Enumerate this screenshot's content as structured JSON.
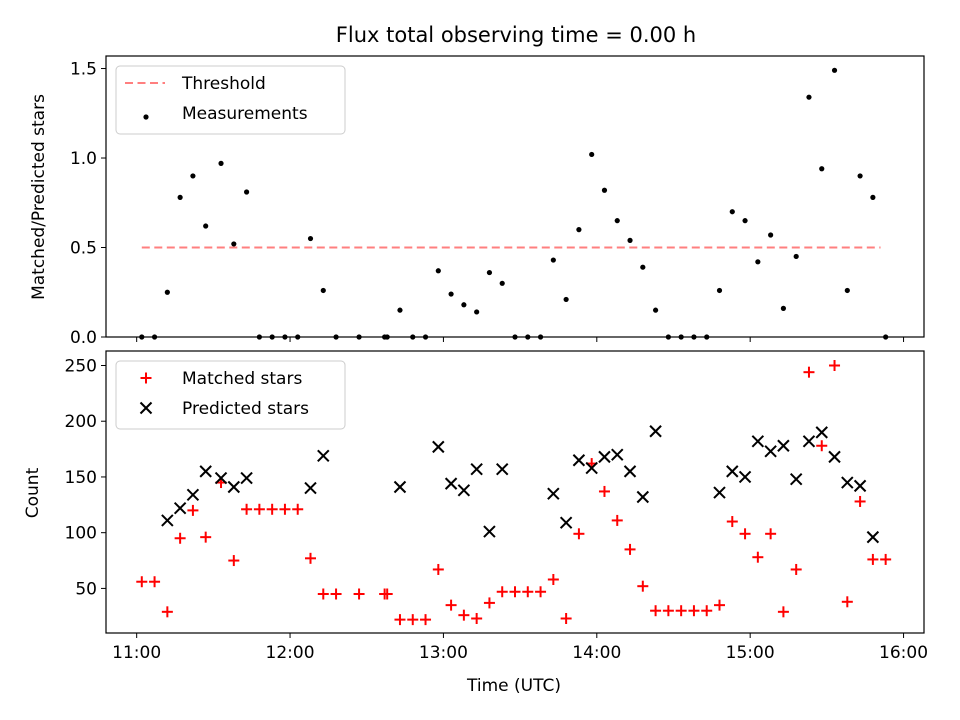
{
  "chart_data": [
    {
      "type": "scatter",
      "title": "Flux total observing time = 0.00 h",
      "xlabel": "",
      "ylabel": "Matched/Predicted stars",
      "xlim": [
        "10:48",
        "16:08"
      ],
      "ylim": [
        0,
        1.57
      ],
      "yticks": [
        0.0,
        0.5,
        1.0,
        1.5
      ],
      "ytick_labels": [
        "0.0",
        "0.5",
        "1.0",
        "1.5"
      ],
      "legend_position": "top-left",
      "threshold": {
        "name": "Threshold",
        "value": 0.5,
        "x": [
          "11:02",
          "15:51"
        ],
        "color": "#ff7f7f",
        "style": "dashed"
      },
      "series": [
        {
          "name": "Measurements",
          "marker": "dot",
          "color": "#000000",
          "points": [
            [
              "11:02",
              0.0
            ],
            [
              "11:07",
              0.0
            ],
            [
              "11:12",
              0.25
            ],
            [
              "11:17",
              0.78
            ],
            [
              "11:22",
              0.9
            ],
            [
              "11:27",
              0.62
            ],
            [
              "11:33",
              0.97
            ],
            [
              "11:38",
              0.52
            ],
            [
              "11:43",
              0.81
            ],
            [
              "11:48",
              0.0
            ],
            [
              "11:53",
              0.0
            ],
            [
              "11:58",
              0.0
            ],
            [
              "12:03",
              0.0
            ],
            [
              "12:08",
              0.55
            ],
            [
              "12:13",
              0.26
            ],
            [
              "12:18",
              0.0
            ],
            [
              "12:27",
              0.0
            ],
            [
              "12:37",
              0.0
            ],
            [
              "12:38",
              0.0
            ],
            [
              "12:43",
              0.15
            ],
            [
              "12:48",
              0.0
            ],
            [
              "12:53",
              0.0
            ],
            [
              "12:58",
              0.37
            ],
            [
              "13:03",
              0.24
            ],
            [
              "13:08",
              0.18
            ],
            [
              "13:13",
              0.14
            ],
            [
              "13:18",
              0.36
            ],
            [
              "13:23",
              0.3
            ],
            [
              "13:28",
              0.0
            ],
            [
              "13:33",
              0.0
            ],
            [
              "13:38",
              0.0
            ],
            [
              "13:43",
              0.43
            ],
            [
              "13:48",
              0.21
            ],
            [
              "13:53",
              0.6
            ],
            [
              "13:58",
              1.02
            ],
            [
              "14:03",
              0.82
            ],
            [
              "14:08",
              0.65
            ],
            [
              "14:13",
              0.54
            ],
            [
              "14:18",
              0.39
            ],
            [
              "14:23",
              0.15
            ],
            [
              "14:28",
              0.0
            ],
            [
              "14:33",
              0.0
            ],
            [
              "14:38",
              0.0
            ],
            [
              "14:43",
              0.0
            ],
            [
              "14:48",
              0.26
            ],
            [
              "14:53",
              0.7
            ],
            [
              "14:58",
              0.65
            ],
            [
              "15:03",
              0.42
            ],
            [
              "15:08",
              0.57
            ],
            [
              "15:13",
              0.16
            ],
            [
              "15:18",
              0.45
            ],
            [
              "15:23",
              1.34
            ],
            [
              "15:28",
              0.94
            ],
            [
              "15:33",
              1.49
            ],
            [
              "15:38",
              0.26
            ],
            [
              "15:43",
              0.9
            ],
            [
              "15:48",
              0.78
            ],
            [
              "15:53",
              0.0
            ]
          ]
        }
      ]
    },
    {
      "type": "scatter",
      "title": "",
      "xlabel": "Time (UTC)",
      "ylabel": "Count",
      "xlim": [
        "10:48",
        "16:08"
      ],
      "ylim": [
        10,
        263
      ],
      "yticks": [
        50,
        100,
        150,
        200,
        250
      ],
      "ytick_labels": [
        "50",
        "100",
        "150",
        "200",
        "250"
      ],
      "xticks": [
        "11:00",
        "12:00",
        "13:00",
        "14:00",
        "15:00",
        "16:00"
      ],
      "xtick_labels": [
        "11:00",
        "12:00",
        "13:00",
        "14:00",
        "15:00",
        "16:00"
      ],
      "legend_position": "top-left",
      "series": [
        {
          "name": "Matched stars",
          "marker": "plus",
          "color": "#ff0000",
          "points": [
            [
              "11:02",
              56
            ],
            [
              "11:07",
              56
            ],
            [
              "11:12",
              29
            ],
            [
              "11:17",
              95
            ],
            [
              "11:22",
              120
            ],
            [
              "11:27",
              96
            ],
            [
              "11:33",
              145
            ],
            [
              "11:38",
              75
            ],
            [
              "11:43",
              121
            ],
            [
              "11:48",
              121
            ],
            [
              "11:53",
              121
            ],
            [
              "11:58",
              121
            ],
            [
              "12:03",
              121
            ],
            [
              "12:08",
              77
            ],
            [
              "12:13",
              45
            ],
            [
              "12:18",
              45
            ],
            [
              "12:27",
              45
            ],
            [
              "12:37",
              45
            ],
            [
              "12:38",
              45
            ],
            [
              "12:43",
              22
            ],
            [
              "12:48",
              22
            ],
            [
              "12:53",
              22
            ],
            [
              "12:58",
              67
            ],
            [
              "13:03",
              35
            ],
            [
              "13:08",
              26
            ],
            [
              "13:13",
              23
            ],
            [
              "13:18",
              37
            ],
            [
              "13:23",
              47
            ],
            [
              "13:28",
              47
            ],
            [
              "13:33",
              47
            ],
            [
              "13:38",
              47
            ],
            [
              "13:43",
              58
            ],
            [
              "13:48",
              23
            ],
            [
              "13:53",
              99
            ],
            [
              "13:58",
              162
            ],
            [
              "14:03",
              137
            ],
            [
              "14:08",
              111
            ],
            [
              "14:13",
              85
            ],
            [
              "14:18",
              52
            ],
            [
              "14:23",
              30
            ],
            [
              "14:28",
              30
            ],
            [
              "14:33",
              30
            ],
            [
              "14:38",
              30
            ],
            [
              "14:43",
              30
            ],
            [
              "14:48",
              35
            ],
            [
              "14:53",
              110
            ],
            [
              "14:58",
              99
            ],
            [
              "15:03",
              78
            ],
            [
              "15:08",
              99
            ],
            [
              "15:13",
              29
            ],
            [
              "15:18",
              67
            ],
            [
              "15:23",
              244
            ],
            [
              "15:28",
              178
            ],
            [
              "15:33",
              250
            ],
            [
              "15:38",
              38
            ],
            [
              "15:43",
              128
            ],
            [
              "15:48",
              76
            ],
            [
              "15:53",
              76
            ]
          ]
        },
        {
          "name": "Predicted stars",
          "marker": "x",
          "color": "#000000",
          "points": [
            [
              "11:12",
              111
            ],
            [
              "11:17",
              122
            ],
            [
              "11:22",
              134
            ],
            [
              "11:27",
              155
            ],
            [
              "11:33",
              149
            ],
            [
              "11:38",
              141
            ],
            [
              "11:43",
              149
            ],
            [
              "12:08",
              140
            ],
            [
              "12:13",
              169
            ],
            [
              "12:43",
              141
            ],
            [
              "12:58",
              177
            ],
            [
              "13:03",
              144
            ],
            [
              "13:08",
              138
            ],
            [
              "13:13",
              157
            ],
            [
              "13:18",
              101
            ],
            [
              "13:23",
              157
            ],
            [
              "13:43",
              135
            ],
            [
              "13:48",
              109
            ],
            [
              "13:53",
              165
            ],
            [
              "13:58",
              158
            ],
            [
              "14:03",
              168
            ],
            [
              "14:08",
              170
            ],
            [
              "14:13",
              155
            ],
            [
              "14:18",
              132
            ],
            [
              "14:23",
              191
            ],
            [
              "14:48",
              136
            ],
            [
              "14:53",
              155
            ],
            [
              "14:58",
              150
            ],
            [
              "15:03",
              182
            ],
            [
              "15:08",
              173
            ],
            [
              "15:13",
              178
            ],
            [
              "15:18",
              148
            ],
            [
              "15:23",
              182
            ],
            [
              "15:28",
              190
            ],
            [
              "15:33",
              168
            ],
            [
              "15:38",
              145
            ],
            [
              "15:43",
              142
            ],
            [
              "15:48",
              96
            ]
          ]
        }
      ]
    }
  ]
}
